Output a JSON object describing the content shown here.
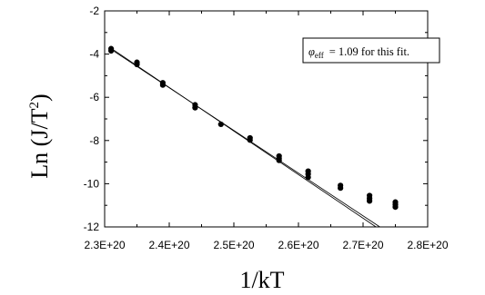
{
  "chart_data": {
    "type": "scatter",
    "xlabel": "1/kT",
    "ylabel": "Ln (J/T^2)",
    "xlim": [
      2.3e+20,
      2.8e+20
    ],
    "ylim": [
      -12,
      -2
    ],
    "x_ticks": [
      {
        "value": 2.3e+20,
        "label": "2.3E+20"
      },
      {
        "value": 2.4e+20,
        "label": "2.4E+20"
      },
      {
        "value": 2.5e+20,
        "label": "2.5E+20"
      },
      {
        "value": 2.6e+20,
        "label": "2.6E+20"
      },
      {
        "value": 2.7e+20,
        "label": "2.7E+20"
      },
      {
        "value": 2.8e+20,
        "label": "2.8E+20"
      }
    ],
    "y_ticks": [
      {
        "value": -2,
        "label": "-2"
      },
      {
        "value": -4,
        "label": "-4"
      },
      {
        "value": -6,
        "label": "-6"
      },
      {
        "value": -8,
        "label": "-8"
      },
      {
        "value": -10,
        "label": "-10"
      },
      {
        "value": -12,
        "label": "-12"
      }
    ],
    "points": [
      {
        "x": 2.31e+20,
        "y": -3.75
      },
      {
        "x": 2.31e+20,
        "y": -3.85
      },
      {
        "x": 2.35e+20,
        "y": -4.38
      },
      {
        "x": 2.35e+20,
        "y": -4.48
      },
      {
        "x": 2.39e+20,
        "y": -5.33
      },
      {
        "x": 2.39e+20,
        "y": -5.43
      },
      {
        "x": 2.44e+20,
        "y": -6.35
      },
      {
        "x": 2.44e+20,
        "y": -6.48
      },
      {
        "x": 2.48e+20,
        "y": -7.25
      },
      {
        "x": 2.525e+20,
        "y": -7.88
      },
      {
        "x": 2.525e+20,
        "y": -7.98
      },
      {
        "x": 2.57e+20,
        "y": -8.72
      },
      {
        "x": 2.57e+20,
        "y": -8.82
      },
      {
        "x": 2.57e+20,
        "y": -8.92
      },
      {
        "x": 2.615e+20,
        "y": -9.42
      },
      {
        "x": 2.615e+20,
        "y": -9.55
      },
      {
        "x": 2.615e+20,
        "y": -9.7
      },
      {
        "x": 2.665e+20,
        "y": -10.08
      },
      {
        "x": 2.665e+20,
        "y": -10.2
      },
      {
        "x": 2.71e+20,
        "y": -10.55
      },
      {
        "x": 2.71e+20,
        "y": -10.68
      },
      {
        "x": 2.71e+20,
        "y": -10.8
      },
      {
        "x": 2.75e+20,
        "y": -10.85
      },
      {
        "x": 2.75e+20,
        "y": -10.97
      },
      {
        "x": 2.75e+20,
        "y": -11.08
      }
    ],
    "fit_lines": [
      {
        "x": [
          2.31e+20,
          2.72e+20
        ],
        "y": [
          -3.73,
          -12
        ]
      },
      {
        "x": [
          2.31e+20,
          2.726e+20
        ],
        "y": [
          -3.78,
          -12
        ]
      }
    ],
    "annotation": {
      "prefix": "φ",
      "subscript": "eff",
      "text": "= 1.09 for this fit.",
      "position": "top-right"
    },
    "grid": false
  }
}
